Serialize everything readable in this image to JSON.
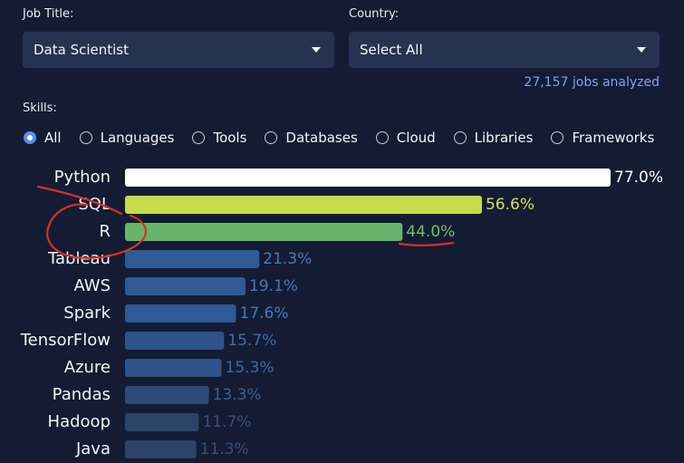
{
  "filters": {
    "job_title_label": "Job Title:",
    "job_title_value": "Data Scientist",
    "country_label": "Country:",
    "country_value": "Select All"
  },
  "jobs_analyzed": "27,157 jobs analyzed",
  "skills_label": "Skills:",
  "skill_categories": [
    {
      "label": "All",
      "checked": true
    },
    {
      "label": "Languages",
      "checked": false
    },
    {
      "label": "Tools",
      "checked": false
    },
    {
      "label": "Databases",
      "checked": false
    },
    {
      "label": "Cloud",
      "checked": false
    },
    {
      "label": "Libraries",
      "checked": false
    },
    {
      "label": "Frameworks",
      "checked": false
    }
  ],
  "chart_data": {
    "type": "bar",
    "orientation": "horizontal",
    "categories": [
      "Python",
      "SQL",
      "R",
      "Tableau",
      "AWS",
      "Spark",
      "TensorFlow",
      "Azure",
      "Pandas",
      "Hadoop",
      "Java"
    ],
    "values": [
      77.0,
      56.6,
      44.0,
      21.3,
      19.1,
      17.6,
      15.7,
      15.3,
      13.3,
      11.7,
      11.3
    ],
    "value_labels": [
      "77.0%",
      "56.6%",
      "44.0%",
      "21.3%",
      "19.1%",
      "17.6%",
      "15.7%",
      "15.3%",
      "13.3%",
      "11.7%",
      "11.3%"
    ],
    "bar_colors": [
      "#ffffff",
      "#c6dc4c",
      "#66b56a",
      "#2f5a94",
      "#2f5a94",
      "#2f5a94",
      "#2e5289",
      "#2e5289",
      "#2d4a78",
      "#2b4468",
      "#2b4468"
    ],
    "value_colors": [
      "#ffffff",
      "#d2e25a",
      "#6fbf6f",
      "#4a78b8",
      "#4a78b8",
      "#4a78b8",
      "#406ba6",
      "#406ba6",
      "#3b5f90",
      "#364f74",
      "#364f74"
    ],
    "xlim": [
      0,
      77.0
    ]
  },
  "colors": {
    "background": "#141c33",
    "select_bg": "#263350",
    "accent": "#5b8cf0",
    "annotation_red": "#d6302a"
  }
}
